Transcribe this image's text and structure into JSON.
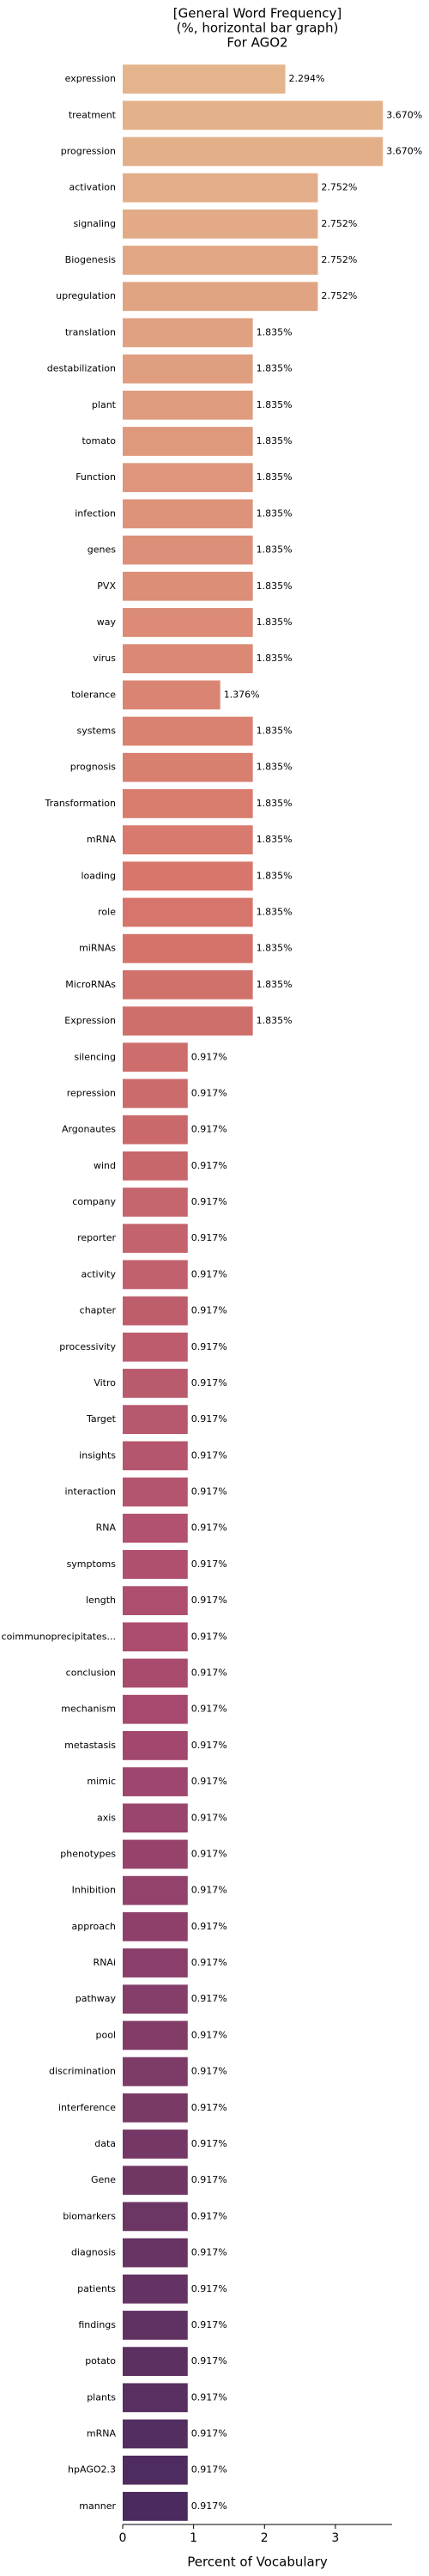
{
  "chart_data": {
    "type": "barh",
    "title_lines": [
      "[General Word Frequency]",
      "(%, horizontal bar graph)",
      "For AGO2"
    ],
    "xlabel": "Percent of Vocabulary",
    "categories": [
      "expression",
      "treatment",
      "progression",
      "activation",
      "signaling",
      "Biogenesis",
      "upregulation",
      "translation",
      "destabilization",
      "plant",
      "tomato",
      "Function",
      "infection",
      "genes",
      "PVX",
      "way",
      "virus",
      "tolerance",
      "systems",
      "prognosis",
      "Transformation",
      "mRNA",
      "loading",
      "role",
      "miRNAs",
      "MicroRNAs",
      "Expression",
      "silencing",
      "repression",
      "Argonautes",
      "wind",
      "company",
      "reporter",
      "activity",
      "chapter",
      "processivity",
      "Vitro",
      "Target",
      "insights",
      "interaction",
      "RNA",
      "symptoms",
      "length",
      "coimmunoprecipitates...",
      "conclusion",
      "mechanism",
      "metastasis",
      "mimic",
      "axis",
      "phenotypes",
      "Inhibition",
      "approach",
      "RNAi",
      "pathway",
      "pool",
      "discrimination",
      "interference",
      "data",
      "Gene",
      "biomarkers",
      "diagnosis",
      "patients",
      "findings",
      "potato",
      "plants",
      "mRNA",
      "hpAGO2.3",
      "manner"
    ],
    "values": [
      2.294,
      3.67,
      3.67,
      2.752,
      2.752,
      2.752,
      2.752,
      1.835,
      1.835,
      1.835,
      1.835,
      1.835,
      1.835,
      1.835,
      1.835,
      1.835,
      1.835,
      1.376,
      1.835,
      1.835,
      1.835,
      1.835,
      1.835,
      1.835,
      1.835,
      1.835,
      1.835,
      0.917,
      0.917,
      0.917,
      0.917,
      0.917,
      0.917,
      0.917,
      0.917,
      0.917,
      0.917,
      0.917,
      0.917,
      0.917,
      0.917,
      0.917,
      0.917,
      0.917,
      0.917,
      0.917,
      0.917,
      0.917,
      0.917,
      0.917,
      0.917,
      0.917,
      0.917,
      0.917,
      0.917,
      0.917,
      0.917,
      0.917,
      0.917,
      0.917,
      0.917,
      0.917,
      0.917,
      0.917,
      0.917,
      0.917,
      0.917,
      0.917
    ],
    "value_labels": [
      "2.294%",
      "3.670%",
      "3.670%",
      "2.752%",
      "2.752%",
      "2.752%",
      "2.752%",
      "1.835%",
      "1.835%",
      "1.835%",
      "1.835%",
      "1.835%",
      "1.835%",
      "1.835%",
      "1.835%",
      "1.835%",
      "1.835%",
      "1.376%",
      "1.835%",
      "1.835%",
      "1.835%",
      "1.835%",
      "1.835%",
      "1.835%",
      "1.835%",
      "1.835%",
      "1.835%",
      "0.917%",
      "0.917%",
      "0.917%",
      "0.917%",
      "0.917%",
      "0.917%",
      "0.917%",
      "0.917%",
      "0.917%",
      "0.917%",
      "0.917%",
      "0.917%",
      "0.917%",
      "0.917%",
      "0.917%",
      "0.917%",
      "0.917%",
      "0.917%",
      "0.917%",
      "0.917%",
      "0.917%",
      "0.917%",
      "0.917%",
      "0.917%",
      "0.917%",
      "0.917%",
      "0.917%",
      "0.917%",
      "0.917%",
      "0.917%",
      "0.917%",
      "0.917%",
      "0.917%",
      "0.917%",
      "0.917%",
      "0.917%",
      "0.917%",
      "0.917%",
      "0.917%",
      "0.917%",
      "0.917%"
    ],
    "palette": [
      "#e4b58c",
      "#d7766b",
      "#a8496f",
      "#4b2b5e"
    ],
    "xlim": [
      0,
      3.8
    ],
    "xticks": [
      0,
      1,
      2,
      3
    ]
  }
}
